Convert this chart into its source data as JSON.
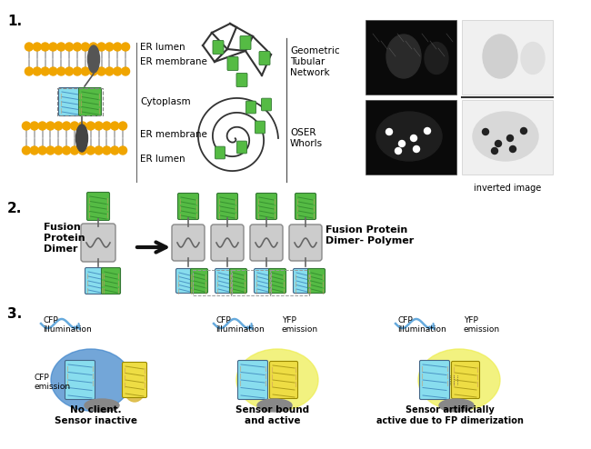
{
  "bg_color": "#ffffff",
  "section1_label": "1.",
  "section2_label": "2.",
  "section3_label": "3.",
  "er_labels": [
    "ER lumen",
    "ER membrane",
    "Cytoplasm",
    "ER membrane",
    "ER lumen"
  ],
  "inverted_label": "inverted image",
  "fusion_dimer_label": "Fusion\nProtein\nDimer",
  "fusion_polymer_label": "Fusion Protein\nDimer- Polymer",
  "no_client_label": "No client.\nSensor inactive",
  "sensor_bound_label": "Sensor bound\nand active",
  "sensor_art_label": "Sensor artificially\nactive due to FP dimerization",
  "gold_color": "#f0a500",
  "gray_membrane": "#aaaaaa",
  "dark_gray_tm": "#555555",
  "green_gfp": "#55bb44",
  "cyan_gfp": "#77cccc",
  "tan_gfp": "#cc9966",
  "yellow_yfp": "#eeee55",
  "blue_cfp": "#4488cc",
  "gray_linker": "#999999",
  "wave_color": "#66aadd",
  "arrow_color": "#111111",
  "line_color": "#555555"
}
